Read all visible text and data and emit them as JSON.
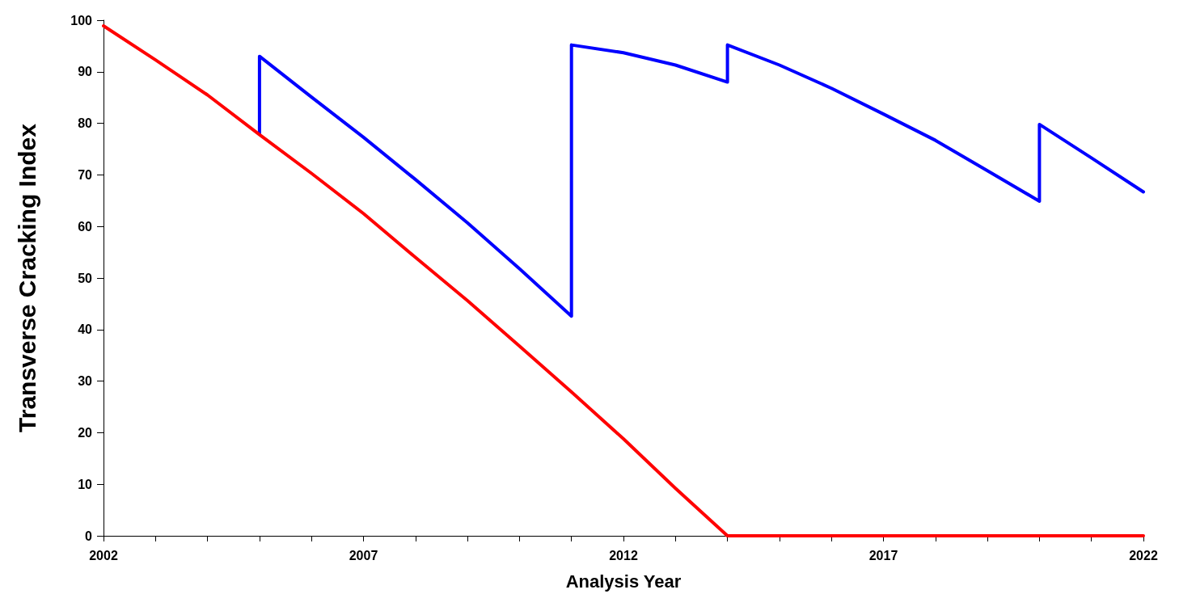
{
  "chart_data": {
    "type": "line",
    "xlabel": "Analysis Year",
    "ylabel": "Transverse Cracking Index",
    "xlim": [
      2002,
      2022
    ],
    "xticks": [
      2002,
      {
        "value": 2003,
        "label": null
      },
      {
        "value": 2004,
        "label": null
      },
      {
        "value": 2005,
        "label": null
      },
      {
        "value": 2006,
        "label": null
      },
      2007,
      {
        "value": 2008,
        "label": null
      },
      {
        "value": 2009,
        "label": null
      },
      {
        "value": 2010,
        "label": null
      },
      {
        "value": 2011,
        "label": null
      },
      2012,
      {
        "value": 2013,
        "label": null
      },
      {
        "value": 2014,
        "label": null
      },
      {
        "value": 2015,
        "label": null
      },
      {
        "value": 2016,
        "label": null
      },
      2017,
      {
        "value": 2018,
        "label": null
      },
      {
        "value": 2019,
        "label": null
      },
      {
        "value": 2020,
        "label": null
      },
      {
        "value": 2021,
        "label": null
      },
      2022
    ],
    "ylim": [
      0,
      100
    ],
    "yticks": [
      0,
      10,
      20,
      30,
      40,
      50,
      60,
      70,
      80,
      90,
      100
    ],
    "grid": false,
    "marker": "none",
    "line_style": "solid",
    "series": [
      {
        "color": "#0000ff",
        "x": [
          2005,
          2005,
          2006,
          2007,
          2008,
          2009,
          2010,
          2011,
          2011,
          2012,
          2013,
          2014,
          2014,
          2015,
          2016,
          2017,
          2018,
          2019,
          2020,
          2020,
          2021,
          2022
        ],
        "values": [
          78,
          93,
          85.1,
          77.3,
          69.1,
          60.7,
          51.8,
          42.6,
          95.2,
          93.7,
          91.3,
          88,
          95.2,
          91.3,
          86.8,
          81.8,
          76.7,
          70.8,
          64.9,
          79.8,
          73.3,
          66.7
        ]
      },
      {
        "color": "#ff0000",
        "x": [
          2002,
          2003,
          2004,
          2005,
          2006,
          2007,
          2008,
          2009,
          2010,
          2011,
          2012,
          2013,
          2014,
          2015,
          2016,
          2017,
          2018,
          2019,
          2020,
          2021,
          2022
        ],
        "values": [
          98.9,
          92.3,
          85.5,
          77.8,
          70.3,
          62.5,
          54,
          45.6,
          36.8,
          27.9,
          18.8,
          9.2,
          0,
          0,
          0,
          0,
          0,
          0,
          0,
          0,
          0
        ]
      }
    ]
  }
}
